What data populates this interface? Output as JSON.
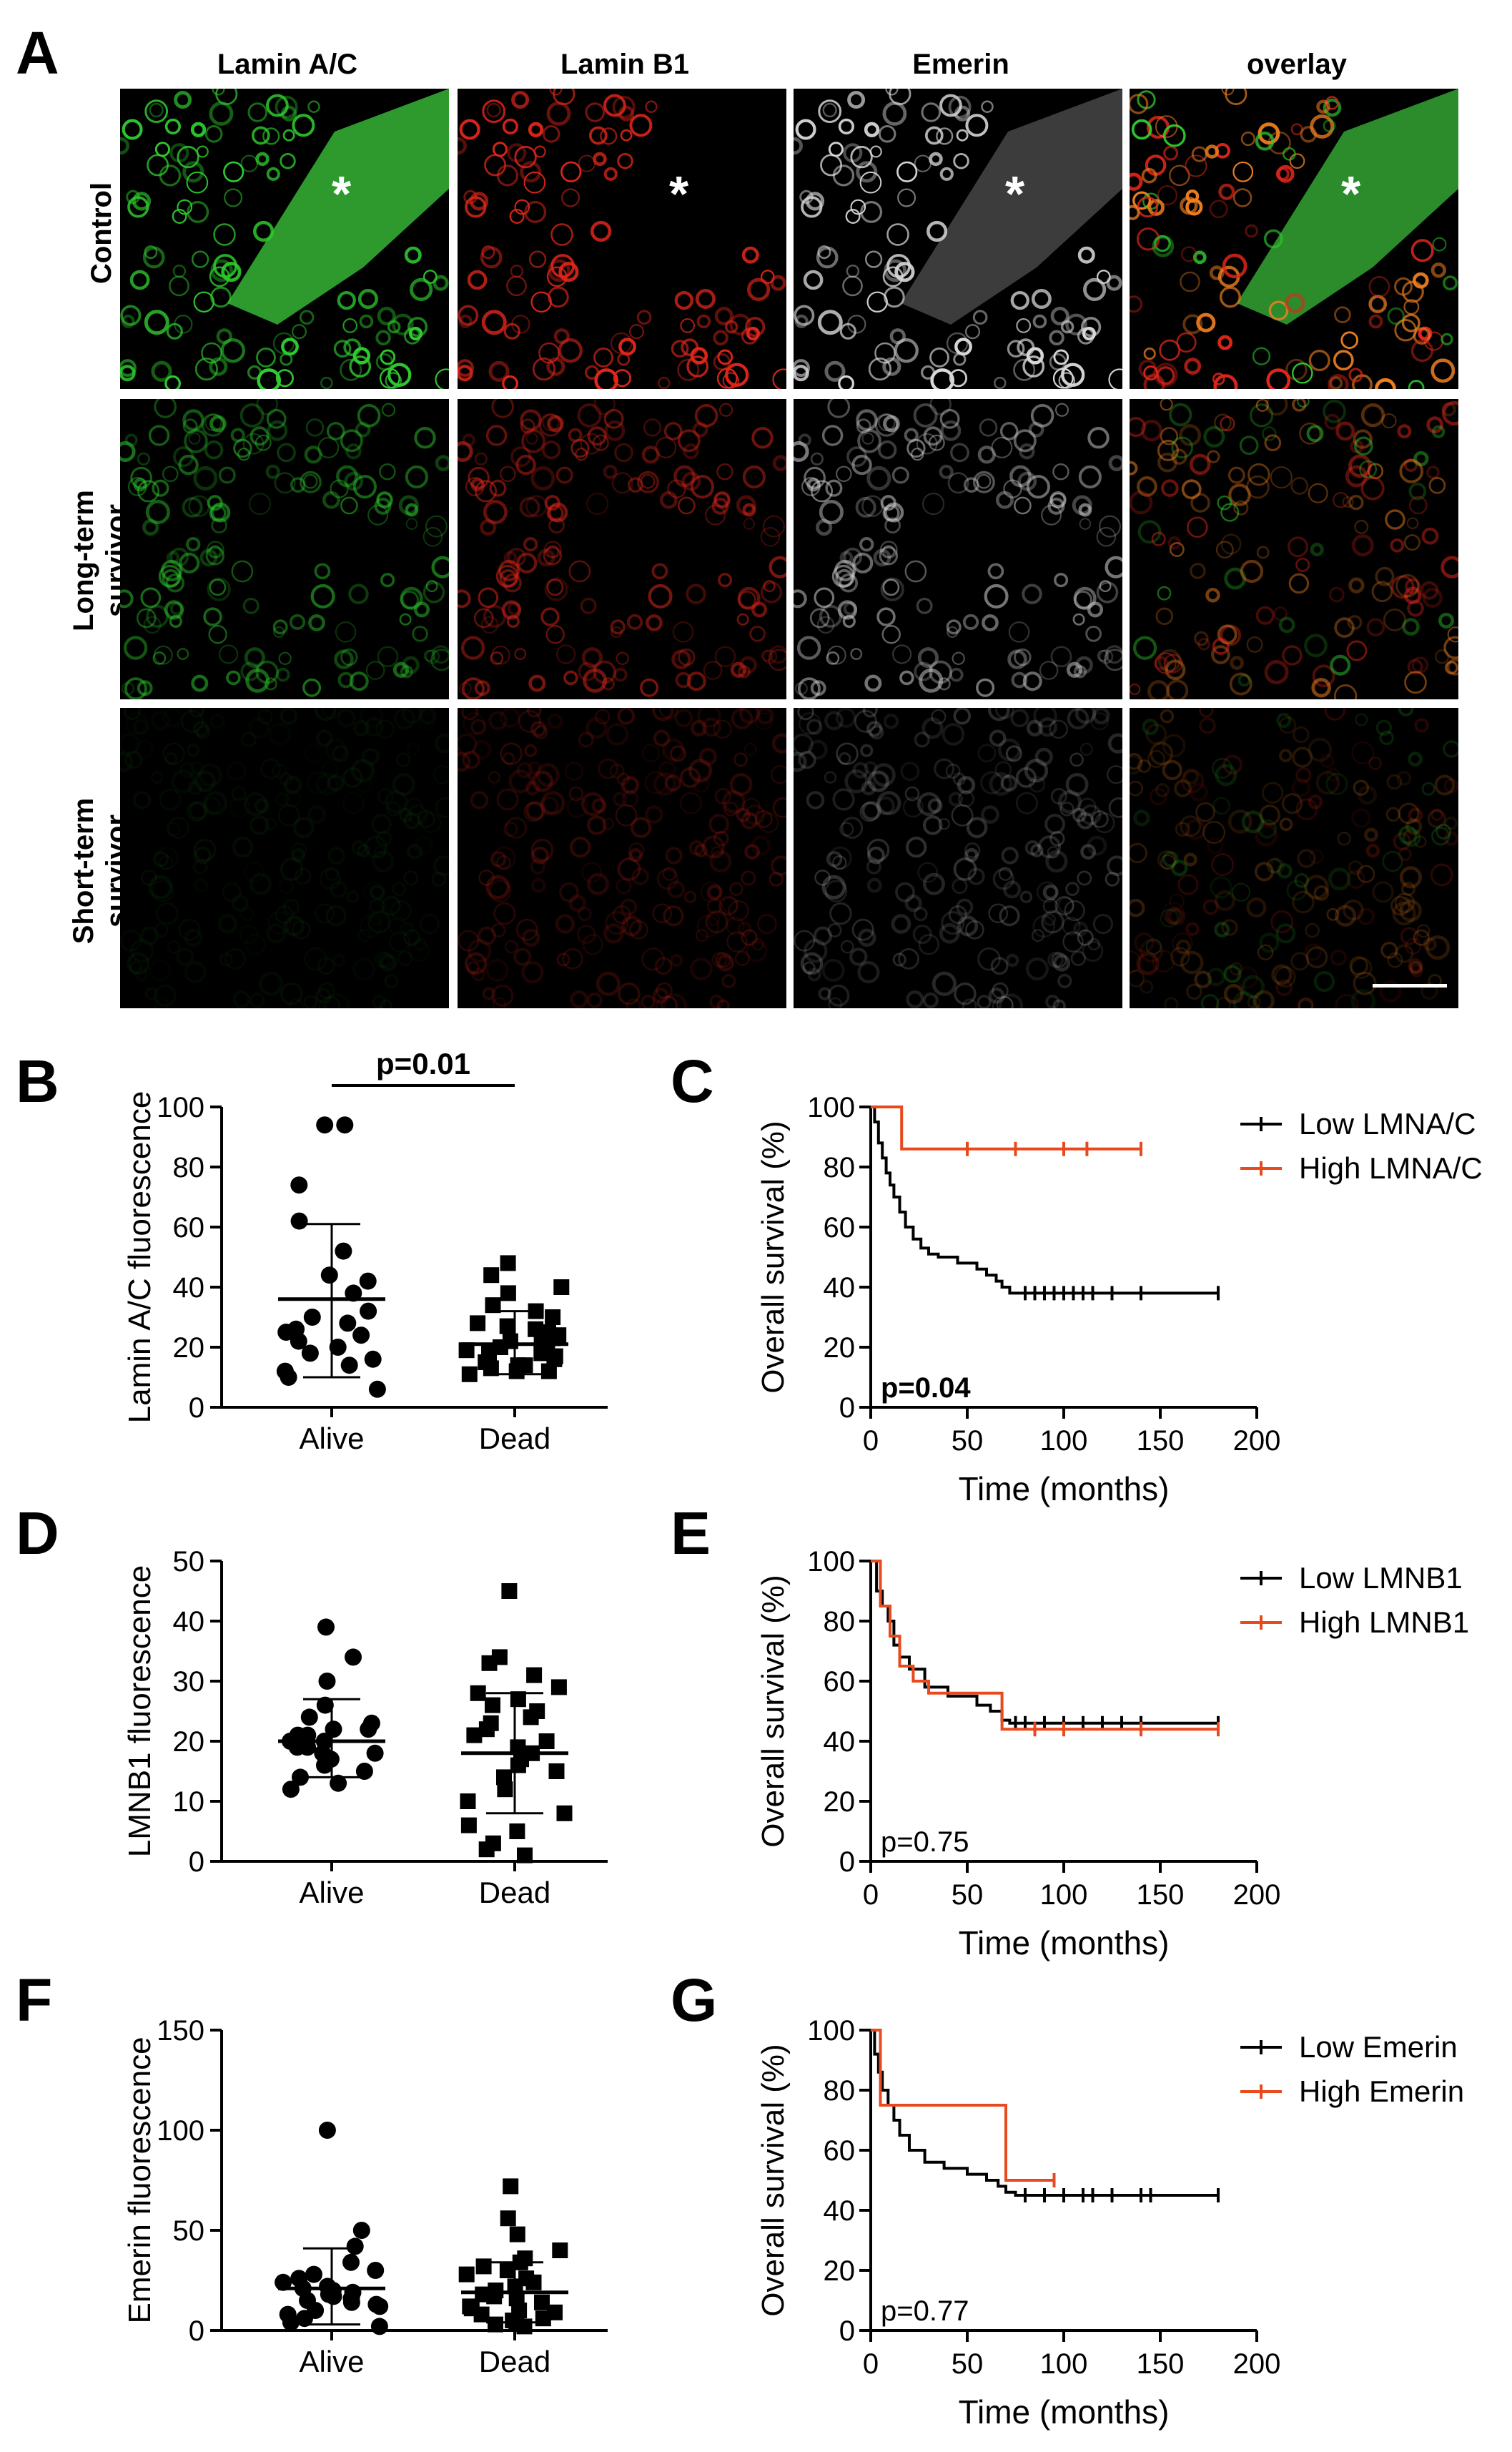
{
  "figure": {
    "panel_letters": [
      "A",
      "B",
      "C",
      "D",
      "E",
      "F",
      "G"
    ],
    "grid": {
      "columns": [
        "Lamin A/C",
        "Lamin B1",
        "Emerin",
        "overlay"
      ],
      "rows": [
        "Control",
        "Long-term\nsurvivor",
        "Short-term\nsurvivor"
      ],
      "asterisk": "*",
      "colors": {
        "lamin_ac": "#2ecc2e",
        "lamin_b1": "#e0261a",
        "emerin": "#d8d8d8"
      }
    }
  },
  "chart_data": [
    {
      "panel": "B",
      "type": "scatter",
      "ylabel": "Lamin A/C fluorescence",
      "categories": [
        "Alive",
        "Dead"
      ],
      "ylim": [
        0,
        100
      ],
      "yticks": [
        0,
        20,
        40,
        60,
        80,
        100
      ],
      "significance": "p=0.01",
      "series": [
        {
          "name": "Alive",
          "marker": "circle",
          "mean": 36,
          "sd_low": 10,
          "sd_high": 61,
          "values": [
            94,
            94,
            74,
            62,
            52,
            44,
            42,
            38,
            32,
            30,
            28,
            26,
            25,
            24,
            22,
            20,
            18,
            16,
            14,
            12,
            10,
            6
          ]
        },
        {
          "name": "Dead",
          "marker": "square",
          "mean": 21,
          "sd_low": 11,
          "sd_high": 32,
          "values": [
            48,
            44,
            40,
            38,
            34,
            32,
            30,
            28,
            27,
            26,
            25,
            24,
            23,
            22,
            22,
            21,
            20,
            19,
            18,
            18,
            17,
            16,
            15,
            14,
            14,
            13,
            12,
            12,
            11
          ]
        }
      ]
    },
    {
      "panel": "C",
      "type": "line",
      "xlabel": "Time (months)",
      "ylabel": "Overall survival (%)",
      "xlim": [
        0,
        200
      ],
      "ylim": [
        0,
        100
      ],
      "xticks": [
        0,
        50,
        100,
        150,
        200
      ],
      "yticks": [
        0,
        20,
        40,
        60,
        80,
        100
      ],
      "annotation": "p=0.04",
      "annotation_bold": true,
      "series": [
        {
          "name": "Low LMNA/C",
          "color": "#000000",
          "x": [
            0,
            2,
            4,
            6,
            8,
            10,
            12,
            15,
            18,
            22,
            26,
            30,
            35,
            45,
            55,
            60,
            65,
            68,
            72,
            75,
            180
          ],
          "y": [
            100,
            95,
            88,
            83,
            78,
            74,
            70,
            65,
            60,
            56,
            53,
            51,
            50,
            48,
            46,
            44,
            42,
            40,
            38,
            38,
            38
          ],
          "censored": [
            80,
            85,
            90,
            95,
            100,
            105,
            110,
            115,
            125,
            140,
            180
          ]
        },
        {
          "name": "High LMNA/C",
          "color": "#e8491d",
          "x": [
            0,
            16,
            140
          ],
          "y": [
            100,
            86,
            86
          ],
          "censored": [
            50,
            75,
            100,
            112,
            140
          ]
        }
      ]
    },
    {
      "panel": "D",
      "type": "scatter",
      "ylabel": "LMNB1 fluorescence",
      "categories": [
        "Alive",
        "Dead"
      ],
      "ylim": [
        0,
        50
      ],
      "yticks": [
        0,
        10,
        20,
        30,
        40,
        50
      ],
      "series": [
        {
          "name": "Alive",
          "marker": "circle",
          "mean": 20,
          "sd_low": 14,
          "sd_high": 27,
          "values": [
            39,
            34,
            30,
            26,
            24,
            23,
            22,
            22,
            21,
            21,
            20,
            20,
            19,
            19,
            18,
            18,
            17,
            16,
            15,
            14,
            13,
            12
          ]
        },
        {
          "name": "Dead",
          "marker": "square",
          "mean": 18,
          "sd_low": 8,
          "sd_high": 28,
          "values": [
            45,
            34,
            33,
            31,
            29,
            28,
            27,
            26,
            25,
            24,
            23,
            22,
            21,
            20,
            19,
            18,
            17,
            16,
            15,
            14,
            12,
            10,
            8,
            6,
            5,
            3,
            2,
            1
          ]
        }
      ]
    },
    {
      "panel": "E",
      "type": "line",
      "xlabel": "Time (months)",
      "ylabel": "Overall survival (%)",
      "xlim": [
        0,
        200
      ],
      "ylim": [
        0,
        100
      ],
      "xticks": [
        0,
        50,
        100,
        150,
        200
      ],
      "yticks": [
        0,
        20,
        40,
        60,
        80,
        100
      ],
      "annotation": "p=0.75",
      "annotation_bold": false,
      "series": [
        {
          "name": "Low LMNB1",
          "color": "#000000",
          "x": [
            0,
            3,
            6,
            9,
            12,
            15,
            20,
            28,
            40,
            55,
            62,
            68,
            72,
            180
          ],
          "y": [
            100,
            90,
            85,
            80,
            72,
            68,
            64,
            58,
            55,
            52,
            50,
            47,
            46,
            46
          ],
          "censored": [
            75,
            80,
            90,
            100,
            110,
            120,
            130,
            140,
            180
          ]
        },
        {
          "name": "High LMNB1",
          "color": "#e8491d",
          "x": [
            0,
            5,
            10,
            15,
            22,
            30,
            60,
            68,
            180
          ],
          "y": [
            100,
            85,
            75,
            65,
            60,
            56,
            56,
            44,
            44
          ],
          "censored": [
            85,
            100,
            140,
            180
          ]
        }
      ]
    },
    {
      "panel": "F",
      "type": "scatter",
      "ylabel": "Emerin fluorescence",
      "categories": [
        "Alive",
        "Dead"
      ],
      "ylim": [
        0,
        150
      ],
      "yticks": [
        0,
        50,
        100,
        150
      ],
      "series": [
        {
          "name": "Alive",
          "marker": "circle",
          "mean": 21,
          "sd_low": 3,
          "sd_high": 41,
          "values": [
            100,
            50,
            42,
            34,
            30,
            28,
            26,
            24,
            22,
            21,
            20,
            19,
            18,
            17,
            16,
            15,
            14,
            13,
            12,
            10,
            8,
            6,
            4,
            2
          ]
        },
        {
          "name": "Dead",
          "marker": "square",
          "mean": 19,
          "sd_low": 4,
          "sd_high": 34,
          "values": [
            72,
            56,
            48,
            40,
            36,
            34,
            32,
            30,
            28,
            26,
            24,
            22,
            20,
            18,
            17,
            16,
            14,
            12,
            11,
            10,
            9,
            8,
            6,
            5,
            4,
            3,
            2
          ]
        }
      ]
    },
    {
      "panel": "G",
      "type": "line",
      "xlabel": "Time (months)",
      "ylabel": "Overall survival (%)",
      "xlim": [
        0,
        200
      ],
      "ylim": [
        0,
        100
      ],
      "xticks": [
        0,
        50,
        100,
        150,
        200
      ],
      "yticks": [
        0,
        20,
        40,
        60,
        80,
        100
      ],
      "annotation": "p=0.77",
      "annotation_bold": false,
      "series": [
        {
          "name": "Low Emerin",
          "color": "#000000",
          "x": [
            0,
            2,
            4,
            6,
            9,
            12,
            15,
            20,
            28,
            38,
            50,
            60,
            66,
            70,
            75,
            180
          ],
          "y": [
            100,
            92,
            86,
            80,
            75,
            70,
            65,
            60,
            56,
            54,
            52,
            50,
            48,
            46,
            45,
            45
          ],
          "censored": [
            80,
            90,
            100,
            110,
            115,
            125,
            140,
            145,
            180
          ]
        },
        {
          "name": "High Emerin",
          "color": "#e8491d",
          "x": [
            0,
            5,
            70,
            95
          ],
          "y": [
            100,
            75,
            50,
            50
          ],
          "censored": [
            95
          ]
        }
      ]
    }
  ]
}
